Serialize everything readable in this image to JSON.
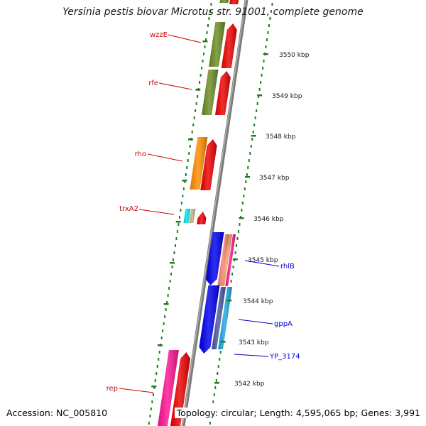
{
  "title": "Yersinia pestis biovar Microtus str. 91001, complete genome",
  "accession": "Accession: NC_005810",
  "topology": "Topology: circular; Length: 4,595,065 bp; Genes: 3,991",
  "ruler": {
    "unit": "kbp",
    "ticks": [
      "3550 kbp",
      "3549 kbp",
      "3548 kbp",
      "3547 kbp",
      "3546 kbp",
      "3545 kbp",
      "3544 kbp",
      "3543 kbp",
      "3542 kbp"
    ]
  },
  "gene_labels": {
    "left": [
      {
        "name": "wzzE",
        "color": "#cc0000"
      },
      {
        "name": "rfe",
        "color": "#cc0000"
      },
      {
        "name": "rho",
        "color": "#cc0000"
      },
      {
        "name": "trxA2",
        "color": "#cc0000"
      },
      {
        "name": "rep",
        "color": "#cc0000"
      }
    ],
    "right": [
      {
        "name": "rhlB",
        "color": "#0000cc"
      },
      {
        "name": "gppA",
        "color": "#0000cc"
      },
      {
        "name": "YP_3174",
        "color": "#0000cc"
      }
    ]
  },
  "colors": {
    "backbone": "#8a8a8a",
    "ruler_tick": "#1e7d1e",
    "forward_cds": "#ee0000",
    "cog_green": "#6b8e23",
    "cog_orange": "#ff8c00",
    "cog_cyan": "#00e5ee",
    "cog_tan": "#c2b280",
    "cog_blue": "#0000ee",
    "cog_steel": "#4a5a9c",
    "cog_sky": "#1ea7e0",
    "cog_pink": "#ff1493",
    "cog_salmon": "#fa8072",
    "cog_peach": "#f4a460"
  }
}
